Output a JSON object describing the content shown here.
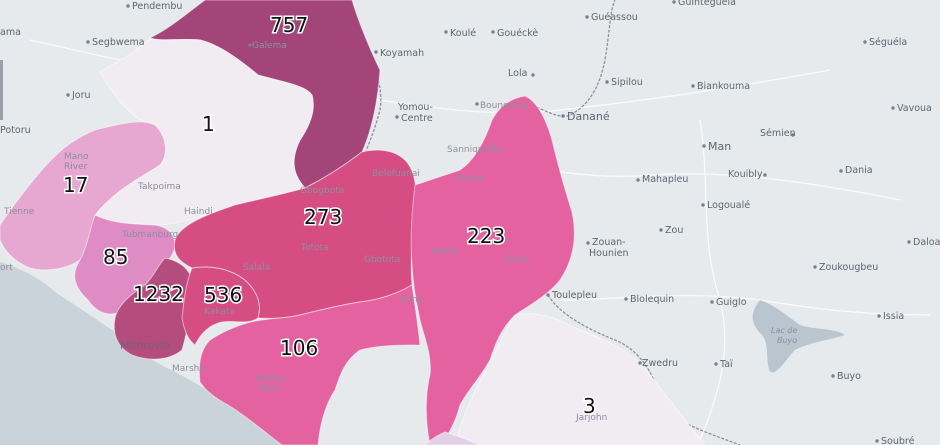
{
  "map": {
    "colors": {
      "land": "#e7eaec",
      "sea": "#c9d3d9",
      "lake": "#b9c6d0",
      "scale": [
        "#f1ecf2",
        "#e6a7d0",
        "#e08cc4",
        "#e3629f",
        "#d64d83",
        "#b44c7e",
        "#a4457a"
      ]
    },
    "regions": [
      {
        "id": "lofa",
        "count": "757",
        "level": 6
      },
      {
        "id": "bong",
        "count": "1",
        "level": 0
      },
      {
        "id": "gbarpolu-west",
        "count": "17",
        "level": 1
      },
      {
        "id": "bomi",
        "count": "85",
        "level": 2
      },
      {
        "id": "montserrado",
        "count": "1232",
        "level": 5
      },
      {
        "id": "margibi",
        "count": "536",
        "level": 4
      },
      {
        "id": "bong-central",
        "count": "273",
        "level": 4
      },
      {
        "id": "nimba",
        "count": "223",
        "level": 3
      },
      {
        "id": "grand-bassa",
        "count": "106",
        "level": 3
      },
      {
        "id": "sinoe",
        "count": "3",
        "level": 0
      }
    ],
    "places": [
      {
        "name": "Pendembu"
      },
      {
        "name": "ama"
      },
      {
        "name": "Segbwema"
      },
      {
        "name": "Joru"
      },
      {
        "name": "Potoru"
      },
      {
        "name": "Galema"
      },
      {
        "name": "Mano River"
      },
      {
        "name": "Takpoima"
      },
      {
        "name": "Haindi"
      },
      {
        "name": "Tubmanburg"
      },
      {
        "name": "Tienne"
      },
      {
        "name": "ort"
      },
      {
        "name": "Monrovia"
      },
      {
        "name": "Marsha"
      },
      {
        "name": "Kakata"
      },
      {
        "name": "Salala"
      },
      {
        "name": "Totota"
      },
      {
        "name": "Gbogbota"
      },
      {
        "name": "Belefuanai"
      },
      {
        "name": "Gbotota"
      },
      {
        "name": "Ganta"
      },
      {
        "name": "Sanniquellie"
      },
      {
        "name": "Mehla"
      },
      {
        "name": "Graie"
      },
      {
        "name": "Zeno"
      },
      {
        "name": "Walker Town"
      },
      {
        "name": "Jarjohn"
      },
      {
        "name": "Koyamah"
      },
      {
        "name": "Koulé"
      },
      {
        "name": "Gouéckè"
      },
      {
        "name": "Guéassou"
      },
      {
        "name": "Guintéguéla"
      },
      {
        "name": "Séguéla"
      },
      {
        "name": "Yomou-Centre"
      },
      {
        "name": "Bounouma"
      },
      {
        "name": "Lola"
      },
      {
        "name": "Sipilou"
      },
      {
        "name": "Biankouma"
      },
      {
        "name": "Vavoua"
      },
      {
        "name": "Danané"
      },
      {
        "name": "Sémien"
      },
      {
        "name": "Man"
      },
      {
        "name": "Mahapleu"
      },
      {
        "name": "Kouibly"
      },
      {
        "name": "Logoualé"
      },
      {
        "name": "Zou"
      },
      {
        "name": "Zouan-Hounien"
      },
      {
        "name": "Dania"
      },
      {
        "name": "Daloa"
      },
      {
        "name": "Zoukougbeu"
      },
      {
        "name": "Toulepleu"
      },
      {
        "name": "Blolequin"
      },
      {
        "name": "Guiglo"
      },
      {
        "name": "Issia"
      },
      {
        "name": "Lac de Buyo"
      },
      {
        "name": "Buyo"
      },
      {
        "name": "Zwedru"
      },
      {
        "name": "Taï"
      },
      {
        "name": "Soubré"
      }
    ]
  }
}
